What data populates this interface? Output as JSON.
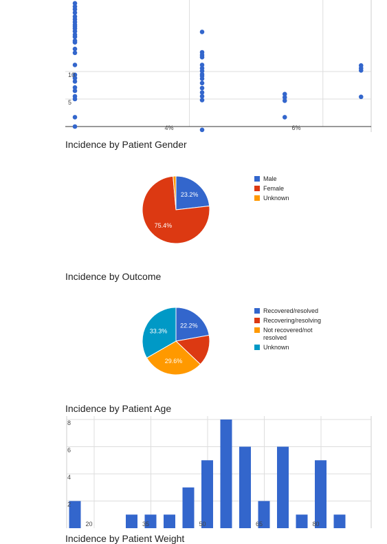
{
  "chart_data": [
    {
      "type": "scatter",
      "title": "",
      "xlabel": "",
      "ylabel": "",
      "x_tick_labels": [
        {
          "value": 4,
          "label": "4%"
        },
        {
          "value": 6,
          "label": "6%"
        }
      ],
      "y_tick_labels": [
        {
          "value": 5,
          "label": "5"
        },
        {
          "value": 10,
          "label": "10"
        }
      ],
      "series": [
        {
          "x": 2.7,
          "y": [
            0,
            1.7,
            5.0,
            5.5,
            6.5,
            7.1,
            8.2,
            8.8,
            9.4,
            11.2,
            13.4,
            14.1,
            15.3,
            15.6,
            16.3,
            16.7,
            17.3,
            17.8,
            18.2,
            18.5,
            19.0,
            19.5,
            20.0,
            20.7,
            21.3,
            21.8,
            22.4
          ]
        },
        {
          "x": 4.7,
          "y": [
            -0.6,
            4.8,
            5.5,
            6.2,
            7.0,
            7.9,
            8.7,
            9.2,
            9.5,
            10.1,
            10.6,
            11.2,
            12.6,
            13.0,
            13.5,
            17.2
          ]
        },
        {
          "x": 6.0,
          "y": [
            1.7,
            4.7,
            5.3,
            5.9
          ]
        },
        {
          "x": 7.2,
          "y": [
            5.4,
            10.2,
            10.6,
            11.1
          ]
        }
      ]
    },
    {
      "type": "pie",
      "title": "Incidence by Patient Gender",
      "legend_position": "right",
      "slices": [
        {
          "name": "Male",
          "value": 23.2,
          "label": "23.2%",
          "color": "#3366cc"
        },
        {
          "name": "Female",
          "value": 75.4,
          "label": "75.4%",
          "color": "#dc3912"
        },
        {
          "name": "Unknown",
          "value": 1.4,
          "label": "",
          "color": "#ff9900"
        }
      ]
    },
    {
      "type": "pie",
      "title": "Incidence by Outcome",
      "legend_position": "right",
      "slices": [
        {
          "name": "Recovered/resolved",
          "value": 22.2,
          "label": "22.2%",
          "color": "#3366cc"
        },
        {
          "name": "Recovering/resolving",
          "value": 14.9,
          "label": "",
          "color": "#dc3912"
        },
        {
          "name": "Not recovered/not resolved",
          "value": 29.6,
          "label": "29.6%",
          "color": "#ff9900"
        },
        {
          "name": "Unknown",
          "value": 33.3,
          "label": "33.3%",
          "color": "#0099c6"
        }
      ]
    },
    {
      "type": "bar",
      "title": "Incidence by Patient Age",
      "xlabel": "",
      "ylabel": "",
      "color": "#3366cc",
      "x_tick_labels": [
        {
          "value": 20,
          "label": "20"
        },
        {
          "value": 35,
          "label": "35"
        },
        {
          "value": 50,
          "label": "50"
        },
        {
          "value": 65,
          "label": "65"
        },
        {
          "value": 80,
          "label": "80"
        }
      ],
      "y_tick_labels": [
        {
          "value": 2,
          "label": "2"
        },
        {
          "value": 4,
          "label": "4"
        },
        {
          "value": 6,
          "label": "6"
        },
        {
          "value": 8,
          "label": "8"
        }
      ],
      "ylim": [
        0,
        8
      ],
      "bars": [
        {
          "x": 15,
          "value": 2
        },
        {
          "x": 30,
          "value": 1
        },
        {
          "x": 35,
          "value": 1
        },
        {
          "x": 40,
          "value": 1
        },
        {
          "x": 45,
          "value": 3
        },
        {
          "x": 50,
          "value": 5
        },
        {
          "x": 55,
          "value": 8
        },
        {
          "x": 60,
          "value": 6
        },
        {
          "x": 65,
          "value": 2
        },
        {
          "x": 70,
          "value": 6
        },
        {
          "x": 75,
          "value": 1
        },
        {
          "x": 80,
          "value": 5
        },
        {
          "x": 85,
          "value": 1
        }
      ]
    }
  ],
  "footer_title": "Incidence by Patient Weight"
}
